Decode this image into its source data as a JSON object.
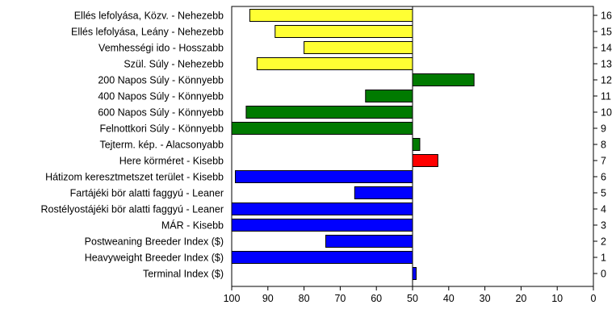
{
  "chart_data": {
    "type": "bar",
    "orientation": "horizontal",
    "xlim": [
      100,
      0
    ],
    "x_reversed": true,
    "baseline": 50,
    "xticks": [
      100,
      90,
      80,
      70,
      60,
      50,
      40,
      30,
      20,
      10,
      0
    ],
    "grid": false,
    "legend": "none",
    "rows": [
      {
        "label": "Ellés lefolyása, Közv. - Nehezebb",
        "rank": "16",
        "value": 95,
        "color": "#ffff33"
      },
      {
        "label": "Ellés lefolyása, Leány - Nehezebb",
        "rank": "15",
        "value": 88,
        "color": "#ffff33"
      },
      {
        "label": "Vemhességi ido - Hosszabb",
        "rank": "14",
        "value": 80,
        "color": "#ffff33"
      },
      {
        "label": "Szül. Súly - Nehezebb",
        "rank": "13",
        "value": 93,
        "color": "#ffff33"
      },
      {
        "label": "200 Napos Súly - Könnyebb",
        "rank": "12",
        "value": 33,
        "color": "#007a00"
      },
      {
        "label": "400 Napos Súly - Könnyebb",
        "rank": "11",
        "value": 63,
        "color": "#007a00"
      },
      {
        "label": "600 Napos Súly - Könnyebb",
        "rank": "10",
        "value": 96,
        "color": "#007a00"
      },
      {
        "label": "Felnottkori Súly - Könnyebb",
        "rank": "9",
        "value": 100,
        "color": "#007a00"
      },
      {
        "label": "Tejterm. kép. - Alacsonyabb",
        "rank": "8",
        "value": 48,
        "color": "#007a00"
      },
      {
        "label": "Here körméret - Kisebb",
        "rank": "7",
        "value": 43,
        "color": "#ff0000"
      },
      {
        "label": "Hátizom keresztmetszet terület - Kisebb",
        "rank": "6",
        "value": 99,
        "color": "#0000ff"
      },
      {
        "label": "Fartájéki bör alatti faggyú - Leaner",
        "rank": "5",
        "value": 66,
        "color": "#0000ff"
      },
      {
        "label": "Rostélyostájéki bör alatti faggyú - Leaner",
        "rank": "4",
        "value": 100,
        "color": "#0000ff"
      },
      {
        "label": "MÁR - Kisebb",
        "rank": "3",
        "value": 100,
        "color": "#0000ff"
      },
      {
        "label": "Postweaning Breeder Index ($)",
        "rank": "2",
        "value": 74,
        "color": "#0000ff"
      },
      {
        "label": "Heavyweight Breeder Index ($)",
        "rank": "1",
        "value": 100,
        "color": "#0000ff"
      },
      {
        "label": "Terminal Index ($)",
        "rank": "0",
        "value": 49,
        "color": "#0000ff"
      }
    ]
  }
}
